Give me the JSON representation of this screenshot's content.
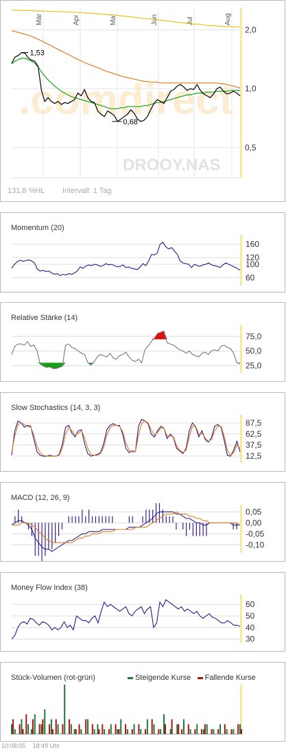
{
  "main_chart": {
    "months": [
      "Mär",
      "Apr",
      "Mai",
      "Jun",
      "Jul",
      "Aug"
    ],
    "y_ticks": [
      "2,0",
      "1,0",
      "0,5"
    ],
    "watermark": ".comdirect",
    "symbol": "DROOY.NAS",
    "annotation_high": "1,53",
    "annotation_low": "0,68",
    "footer_perf": "131,8 %HL",
    "footer_interval": "Intervall: 1 Tag"
  },
  "momentum": {
    "title": "Momentum (20)",
    "y_ticks": [
      "160",
      "120",
      "100",
      "60"
    ]
  },
  "rsi": {
    "title": "Relative Stärke (14)",
    "y_ticks": [
      "75,0",
      "50,0",
      "25,0"
    ]
  },
  "stochastics": {
    "title": "Slow Stochastics (14, 3, 3)",
    "y_ticks": [
      "87,5",
      "62,5",
      "37,5",
      "12,5"
    ]
  },
  "macd": {
    "title": "MACD (12, 26, 9)",
    "y_ticks": [
      "0,05",
      "0,00",
      "-0,05",
      "-0,10"
    ]
  },
  "mfi": {
    "title": "Money Flow Index (38)",
    "y_ticks": [
      "60",
      "50",
      "40",
      "30"
    ]
  },
  "volume": {
    "title": "Stück-Volumen (rot-grün)",
    "legend_up": "Steigende Kurse",
    "legend_down": "Fallende Kurse"
  },
  "footer": {
    "time1": "10:08:05",
    "time2": "18:49 Uhr"
  },
  "colors": {
    "price": "#000000",
    "ma_green": "#1aa11a",
    "ma_orange": "#e07b20",
    "ma_yellow": "#e8c21a",
    "indicator": "#2a1a8a",
    "up": "#1a7a3a",
    "down": "#b01010",
    "highlight": "#fff4c8"
  },
  "chart_data": [
    {
      "type": "line",
      "title": "",
      "x_labels": [
        "Mär",
        "Apr",
        "Mai",
        "Jun",
        "Jul",
        "Aug"
      ],
      "yscale": "log",
      "ylim": [
        0.35,
        2.6
      ],
      "series": [
        {
          "values": [
            1.35,
            1.45,
            1.48,
            1.53,
            1.52,
            1.44,
            1.4,
            1.38,
            1.3,
            0.98,
            0.86,
            0.9,
            0.86,
            0.84,
            0.86,
            0.83,
            0.85,
            0.84,
            0.86,
            0.88,
            0.95,
            0.92,
            0.99,
            0.9,
            0.86,
            0.85,
            0.77,
            0.74,
            0.72,
            0.77,
            0.75,
            0.73,
            0.68,
            0.7,
            0.72,
            0.74,
            0.78,
            0.75,
            0.7,
            0.68,
            0.69,
            0.72,
            0.78,
            0.84,
            0.88,
            0.86,
            0.84,
            0.9,
            0.97,
            0.99,
            1.03,
            1.05,
            1.02,
            0.98,
            1.0,
            0.99,
            1.05,
            0.98,
            0.94,
            0.92,
            0.9,
            0.94,
            1.0,
            1.02,
            0.97,
            0.94,
            0.95,
            0.97,
            0.95,
            0.92
          ]
        },
        {
          "values": [
            1.34,
            1.38,
            1.41,
            1.43,
            1.43,
            1.41,
            1.38,
            1.35,
            1.29,
            1.22,
            1.16,
            1.11,
            1.07,
            1.03,
            1.0,
            0.97,
            0.95,
            0.93,
            0.91,
            0.9,
            0.89,
            0.88,
            0.87,
            0.86,
            0.85,
            0.84,
            0.83,
            0.82,
            0.81,
            0.8,
            0.79,
            0.79,
            0.79,
            0.8,
            0.8,
            0.81,
            0.81,
            0.81,
            0.81,
            0.81,
            0.82,
            0.82,
            0.83,
            0.84,
            0.85,
            0.85,
            0.86,
            0.87,
            0.88,
            0.89,
            0.9,
            0.91,
            0.92,
            0.93,
            0.93,
            0.94,
            0.95,
            0.95,
            0.95,
            0.96,
            0.96,
            0.96,
            0.97,
            0.97,
            0.97,
            0.97,
            0.98,
            0.98,
            0.98,
            0.98
          ]
        },
        {
          "values": [
            1.98,
            1.96,
            1.94,
            1.92,
            1.9,
            1.88,
            1.85,
            1.82,
            1.79,
            1.76,
            1.72,
            1.69,
            1.66,
            1.62,
            1.59,
            1.56,
            1.53,
            1.5,
            1.47,
            1.44,
            1.41,
            1.39,
            1.36,
            1.34,
            1.32,
            1.3,
            1.28,
            1.26,
            1.24,
            1.22,
            1.21,
            1.19,
            1.18,
            1.16,
            1.15,
            1.14,
            1.13,
            1.12,
            1.11,
            1.1,
            1.09,
            1.09,
            1.08,
            1.08,
            1.08,
            1.07,
            1.07,
            1.07,
            1.07,
            1.07,
            1.07,
            1.07,
            1.07,
            1.07,
            1.07,
            1.07,
            1.07,
            1.07,
            1.07,
            1.07,
            1.07,
            1.07,
            1.07,
            1.06,
            1.06,
            1.05,
            1.04,
            1.03,
            1.02,
            1.01
          ]
        },
        {
          "values": [
            2.52,
            2.52,
            2.52,
            2.51,
            2.51,
            2.51,
            2.51,
            2.5,
            2.5,
            2.5,
            2.49,
            2.49,
            2.49,
            2.48,
            2.48,
            2.48,
            2.47,
            2.47,
            2.46,
            2.46,
            2.45,
            2.45,
            2.44,
            2.44,
            2.43,
            2.42,
            2.42,
            2.41,
            2.4,
            2.39,
            2.39,
            2.38,
            2.37,
            2.36,
            2.35,
            2.34,
            2.33,
            2.32,
            2.31,
            2.3,
            2.29,
            2.28,
            2.27,
            2.26,
            2.25,
            2.24,
            2.23,
            2.22,
            2.21,
            2.2,
            2.19,
            2.18,
            2.17,
            2.16,
            2.15,
            2.14,
            2.14,
            2.13,
            2.12,
            2.11,
            2.1,
            2.1,
            2.09,
            2.09,
            2.08,
            2.08,
            2.08,
            2.07,
            2.07,
            2.07
          ]
        }
      ]
    },
    {
      "type": "line",
      "title": "Momentum (20)",
      "ylim": [
        40,
        180
      ],
      "series": [
        {
          "values": [
            88,
            100,
            108,
            112,
            109,
            111,
            113,
            110,
            104,
            85,
            80,
            82,
            78,
            80,
            74,
            70,
            72,
            66,
            70,
            68,
            72,
            70,
            74,
            80,
            92,
            88,
            95,
            98,
            96,
            100,
            98,
            94,
            96,
            102,
            98,
            100,
            96,
            92,
            94,
            98,
            90,
            92,
            88,
            86,
            84,
            92,
            102,
            96,
            110,
            130,
            128,
            134,
            160,
            166,
            152,
            146,
            150,
            140,
            130,
            110,
            104,
            102,
            100,
            90,
            100,
            96,
            94,
            98,
            100,
            104,
            98,
            96,
            94,
            90,
            98,
            104,
            100,
            96,
            92,
            88,
            82
          ]
        }
      ]
    },
    {
      "type": "area",
      "title": "Relative Stärke (14)",
      "ylim": [
        15,
        90
      ],
      "series": [
        {
          "values": [
            44,
            58,
            62,
            62,
            60,
            66,
            58,
            60,
            50,
            28,
            24,
            22,
            23,
            20,
            20,
            22,
            24,
            60,
            62,
            56,
            54,
            50,
            46,
            44,
            30,
            26,
            32,
            40,
            44,
            42,
            40,
            46,
            38,
            36,
            42,
            44,
            48,
            40,
            34,
            32,
            36,
            30,
            52,
            58,
            66,
            72,
            80,
            82,
            84,
            64,
            62,
            60,
            56,
            52,
            50,
            46,
            50,
            44,
            42,
            40,
            46,
            48,
            44,
            50,
            52,
            50,
            58,
            60,
            56,
            54,
            46,
            30,
            28
          ]
        }
      ]
    },
    {
      "type": "line",
      "title": "Slow Stochastics (14, 3, 3)",
      "ylim": [
        0,
        100
      ],
      "series": [
        {
          "values": [
            14,
            70,
            92,
            88,
            78,
            82,
            80,
            50,
            22,
            14,
            12,
            12,
            14,
            12,
            12,
            16,
            40,
            78,
            82,
            64,
            56,
            70,
            72,
            40,
            18,
            12,
            14,
            16,
            20,
            40,
            72,
            82,
            86,
            82,
            82,
            62,
            30,
            20,
            24,
            22,
            80,
            96,
            92,
            86,
            62,
            56,
            70,
            80,
            76,
            52,
            62,
            54,
            30,
            24,
            18,
            30,
            70,
            88,
            78,
            56,
            70,
            50,
            44,
            54,
            80,
            84,
            78,
            48,
            14,
            12,
            26,
            46,
            22
          ]
        },
        {
          "values": [
            20,
            58,
            84,
            88,
            84,
            80,
            78,
            60,
            34,
            20,
            14,
            12,
            12,
            12,
            12,
            14,
            30,
            62,
            78,
            70,
            60,
            64,
            70,
            54,
            30,
            16,
            14,
            14,
            18,
            32,
            60,
            76,
            82,
            82,
            80,
            68,
            42,
            26,
            22,
            22,
            60,
            86,
            92,
            88,
            72,
            60,
            66,
            76,
            76,
            58,
            58,
            56,
            36,
            26,
            20,
            26,
            56,
            80,
            80,
            62,
            64,
            54,
            46,
            50,
            70,
            80,
            80,
            58,
            26,
            14,
            20,
            38,
            30
          ]
        }
      ]
    },
    {
      "type": "line",
      "title": "MACD (12, 26, 9)",
      "ylim": [
        -0.13,
        0.07
      ],
      "series": [
        {
          "values": [
            -0.01,
            0.0,
            0.01,
            0.01,
            0.0,
            -0.01,
            -0.03,
            -0.07,
            -0.09,
            -0.11,
            -0.12,
            -0.12,
            -0.13,
            -0.12,
            -0.11,
            -0.1,
            -0.09,
            -0.08,
            -0.08,
            -0.07,
            -0.06,
            -0.05,
            -0.05,
            -0.04,
            -0.04,
            -0.04,
            -0.04,
            -0.03,
            -0.03,
            -0.03,
            -0.03,
            -0.03,
            -0.03,
            -0.03,
            -0.03,
            -0.02,
            -0.02,
            -0.02,
            -0.02,
            -0.01,
            0.0,
            0.01,
            0.02,
            0.04,
            0.05,
            0.05,
            0.05,
            0.05,
            0.05,
            0.04,
            0.04,
            0.03,
            0.02,
            0.02,
            0.01,
            0.0,
            0.0,
            -0.01,
            -0.01,
            0.0,
            0.0,
            0.0,
            0.0,
            0.0,
            0.0,
            0.0,
            -0.01,
            -0.01,
            -0.01
          ]
        },
        {
          "values": [
            -0.01,
            -0.01,
            -0.01,
            0.0,
            0.0,
            0.0,
            -0.01,
            -0.02,
            -0.04,
            -0.05,
            -0.07,
            -0.08,
            -0.09,
            -0.09,
            -0.09,
            -0.09,
            -0.09,
            -0.09,
            -0.09,
            -0.08,
            -0.07,
            -0.07,
            -0.06,
            -0.06,
            -0.05,
            -0.05,
            -0.05,
            -0.04,
            -0.04,
            -0.04,
            -0.04,
            -0.03,
            -0.03,
            -0.03,
            -0.03,
            -0.03,
            -0.03,
            -0.02,
            -0.02,
            -0.02,
            -0.02,
            -0.01,
            0.0,
            0.01,
            0.02,
            0.03,
            0.04,
            0.04,
            0.04,
            0.05,
            0.04,
            0.04,
            0.04,
            0.03,
            0.03,
            0.02,
            0.02,
            0.01,
            0.01,
            0.0,
            0.0,
            0.0,
            0.0,
            0.0,
            0.0,
            0.0,
            0.0,
            0.0,
            -0.01
          ]
        }
      ]
    },
    {
      "type": "line",
      "title": "Money Flow Index (38)",
      "ylim": [
        28,
        66
      ],
      "series": [
        {
          "values": [
            30,
            33,
            40,
            44,
            45,
            43,
            48,
            47,
            44,
            42,
            45,
            44,
            42,
            38,
            40,
            38,
            40,
            45,
            40,
            42,
            38,
            50,
            48,
            46,
            46,
            44,
            48,
            50,
            44,
            54,
            62,
            58,
            60,
            58,
            56,
            54,
            56,
            58,
            52,
            50,
            54,
            56,
            58,
            52,
            56,
            58,
            40,
            44,
            62,
            58,
            64,
            62,
            60,
            58,
            56,
            58,
            54,
            56,
            54,
            52,
            54,
            50,
            48,
            50,
            52,
            49,
            48,
            46,
            44,
            44,
            46,
            44,
            42,
            42,
            41
          ]
        }
      ]
    },
    {
      "type": "bar",
      "title": "Stück-Volumen (rot-grün)",
      "series": [
        {
          "name": "Steigende Kurse",
          "values": [
            2,
            1,
            0,
            3,
            0,
            2,
            1,
            4,
            0,
            2,
            5,
            0,
            3,
            0,
            2,
            0,
            10,
            0,
            2,
            1,
            0,
            1,
            0,
            3,
            0,
            1,
            2,
            0,
            1,
            0,
            2,
            0,
            1,
            3,
            0,
            1,
            0,
            2,
            0,
            1,
            0,
            3,
            0,
            2,
            0,
            1,
            4,
            0,
            1,
            0,
            2,
            0,
            3,
            0,
            1,
            0,
            2,
            0,
            1,
            2,
            0,
            1,
            0,
            2,
            0,
            1,
            0,
            1,
            0,
            2
          ]
        },
        {
          "name": "Fallende Kurse",
          "values": [
            3,
            0,
            2,
            1,
            4,
            0,
            3,
            0,
            2,
            3,
            0,
            2,
            1,
            3,
            0,
            2,
            0,
            3,
            0,
            1,
            2,
            0,
            3,
            0,
            2,
            0,
            1,
            2,
            0,
            1,
            0,
            2,
            1,
            0,
            2,
            0,
            1,
            0,
            2,
            0,
            1,
            0,
            3,
            0,
            1,
            0,
            2,
            0,
            3,
            0,
            2,
            1,
            0,
            2,
            0,
            1,
            0,
            1,
            2,
            0,
            1,
            0,
            1,
            0,
            2,
            0,
            1,
            0,
            2,
            1
          ]
        }
      ]
    }
  ]
}
